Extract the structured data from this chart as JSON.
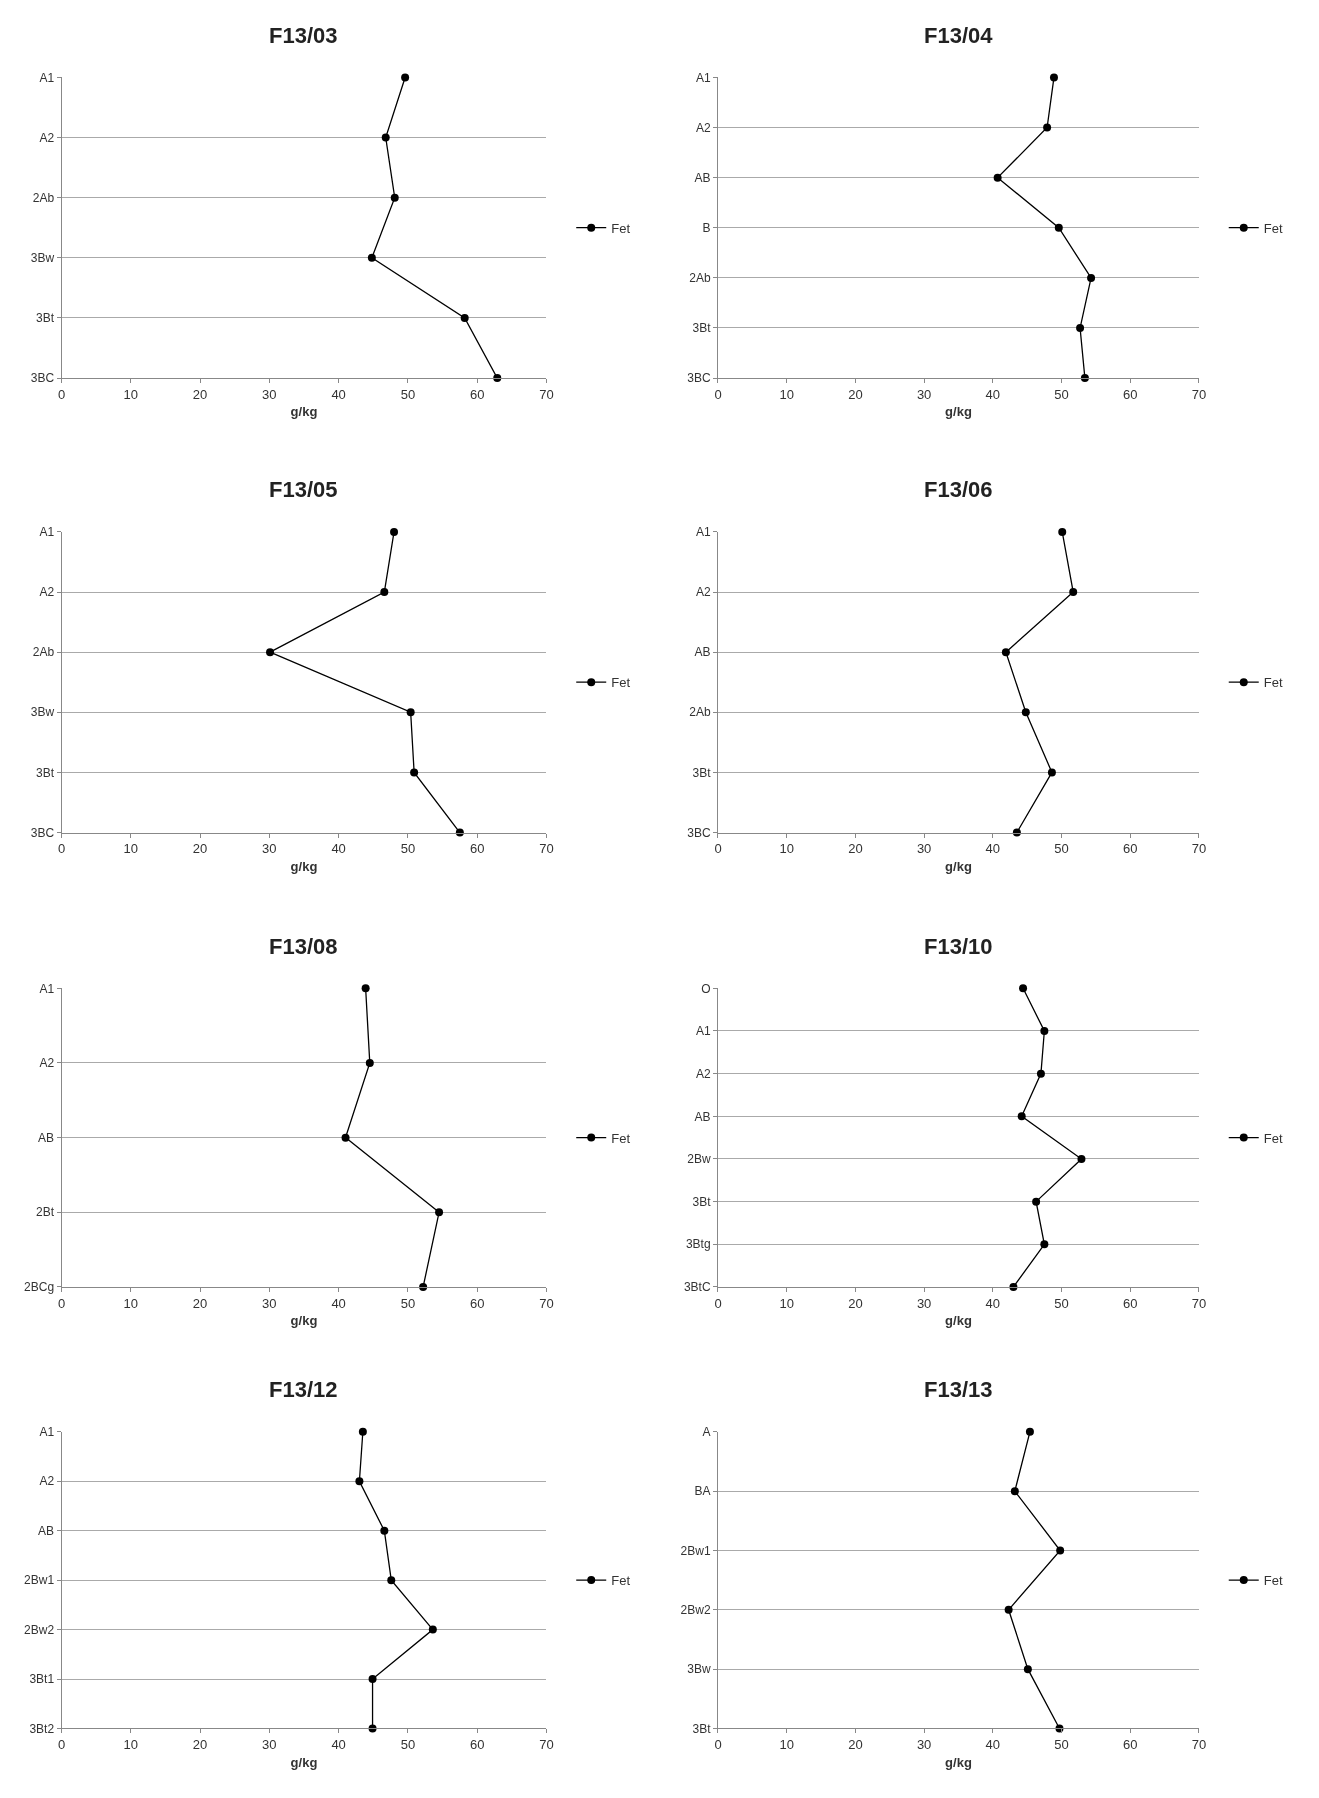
{
  "chart_data": [
    {
      "type": "line",
      "orientation": "horizontal",
      "title": "F13/03",
      "xlabel": "g/kg",
      "categories": [
        "A1",
        "A2",
        "2Ab",
        "3Bw",
        "3Bt",
        "3BC"
      ],
      "xlim": [
        0,
        70
      ],
      "xticks": [
        0,
        10,
        20,
        30,
        40,
        50,
        60,
        70
      ],
      "grid": "y",
      "legend": "right",
      "marker": "circle",
      "series": [
        {
          "name": "Fet",
          "color": "#000000",
          "values": [
            49.6,
            46.8,
            48.1,
            44.8,
            58.2,
            62.9
          ]
        }
      ]
    },
    {
      "type": "line",
      "orientation": "horizontal",
      "title": "F13/04",
      "xlabel": "g/kg",
      "categories": [
        "A1",
        "A2",
        "AB",
        "B",
        "2Ab",
        "3Bt",
        "3BC"
      ],
      "xlim": [
        0,
        70
      ],
      "xticks": [
        0,
        10,
        20,
        30,
        40,
        50,
        60,
        70
      ],
      "grid": "y",
      "legend": "right",
      "marker": "circle",
      "series": [
        {
          "name": "Fet",
          "color": "#000000",
          "values": [
            48.9,
            47.9,
            40.7,
            49.6,
            54.3,
            52.7,
            53.4
          ]
        }
      ]
    },
    {
      "type": "line",
      "orientation": "horizontal",
      "title": "F13/05",
      "xlabel": "g/kg",
      "categories": [
        "A1",
        "A2",
        "2Ab",
        "3Bw",
        "3Bt",
        "3BC"
      ],
      "xlim": [
        0,
        70
      ],
      "xticks": [
        0,
        10,
        20,
        30,
        40,
        50,
        60,
        70
      ],
      "grid": "y",
      "legend": "right",
      "marker": "circle",
      "series": [
        {
          "name": "Fet",
          "color": "#000000",
          "values": [
            48.0,
            46.6,
            30.1,
            50.4,
            50.9,
            57.5
          ]
        }
      ]
    },
    {
      "type": "line",
      "orientation": "horizontal",
      "title": "F13/06",
      "xlabel": "g/kg",
      "categories": [
        "A1",
        "A2",
        "AB",
        "2Ab",
        "3Bt",
        "3BC"
      ],
      "xlim": [
        0,
        70
      ],
      "xticks": [
        0,
        10,
        20,
        30,
        40,
        50,
        60,
        70
      ],
      "grid": "y",
      "legend": "right",
      "marker": "circle",
      "series": [
        {
          "name": "Fet",
          "color": "#000000",
          "values": [
            50.1,
            51.7,
            41.9,
            44.8,
            48.6,
            43.5
          ]
        }
      ]
    },
    {
      "type": "line",
      "orientation": "horizontal",
      "title": "F13/08",
      "xlabel": "g/kg",
      "categories": [
        "A1",
        "A2",
        "AB",
        "2Bt",
        "2BCg"
      ],
      "xlim": [
        0,
        70
      ],
      "xticks": [
        0,
        10,
        20,
        30,
        40,
        50,
        60,
        70
      ],
      "grid": "y",
      "legend": "right",
      "marker": "circle",
      "series": [
        {
          "name": "Fet",
          "color": "#000000",
          "values": [
            43.9,
            44.5,
            41.0,
            54.5,
            52.2
          ]
        }
      ]
    },
    {
      "type": "line",
      "orientation": "horizontal",
      "title": "F13/10",
      "xlabel": "g/kg",
      "categories": [
        "O",
        "A1",
        "A2",
        "AB",
        "2Bw",
        "3Bt",
        "3Btg",
        "3BtC"
      ],
      "xlim": [
        0,
        70
      ],
      "xticks": [
        0,
        10,
        20,
        30,
        40,
        50,
        60,
        70
      ],
      "grid": "y",
      "legend": "right",
      "marker": "circle",
      "series": [
        {
          "name": "Fet",
          "color": "#000000",
          "values": [
            44.4,
            47.5,
            47.0,
            44.2,
            52.9,
            46.3,
            47.5,
            43.0
          ]
        }
      ]
    },
    {
      "type": "line",
      "orientation": "horizontal",
      "title": "F13/12",
      "xlabel": "g/kg",
      "categories": [
        "A1",
        "A2",
        "AB",
        "2Bw1",
        "2Bw2",
        "3Bt1",
        "3Bt2"
      ],
      "xlim": [
        0,
        70
      ],
      "xticks": [
        0,
        10,
        20,
        30,
        40,
        50,
        60,
        70
      ],
      "grid": "y",
      "legend": "right",
      "marker": "circle",
      "series": [
        {
          "name": "Fet",
          "color": "#000000",
          "values": [
            43.5,
            43.0,
            46.6,
            47.6,
            53.6,
            44.9,
            44.9
          ]
        }
      ]
    },
    {
      "type": "line",
      "orientation": "horizontal",
      "title": "F13/13",
      "xlabel": "g/kg",
      "categories": [
        "A",
        "BA",
        "2Bw1",
        "2Bw2",
        "3Bw",
        "3Bt"
      ],
      "xlim": [
        0,
        70
      ],
      "xticks": [
        0,
        10,
        20,
        30,
        40,
        50,
        60,
        70
      ],
      "grid": "y",
      "legend": "right",
      "marker": "circle",
      "series": [
        {
          "name": "Fet",
          "color": "#000000",
          "values": [
            45.4,
            43.2,
            49.8,
            42.3,
            45.1,
            49.7
          ]
        }
      ]
    }
  ]
}
